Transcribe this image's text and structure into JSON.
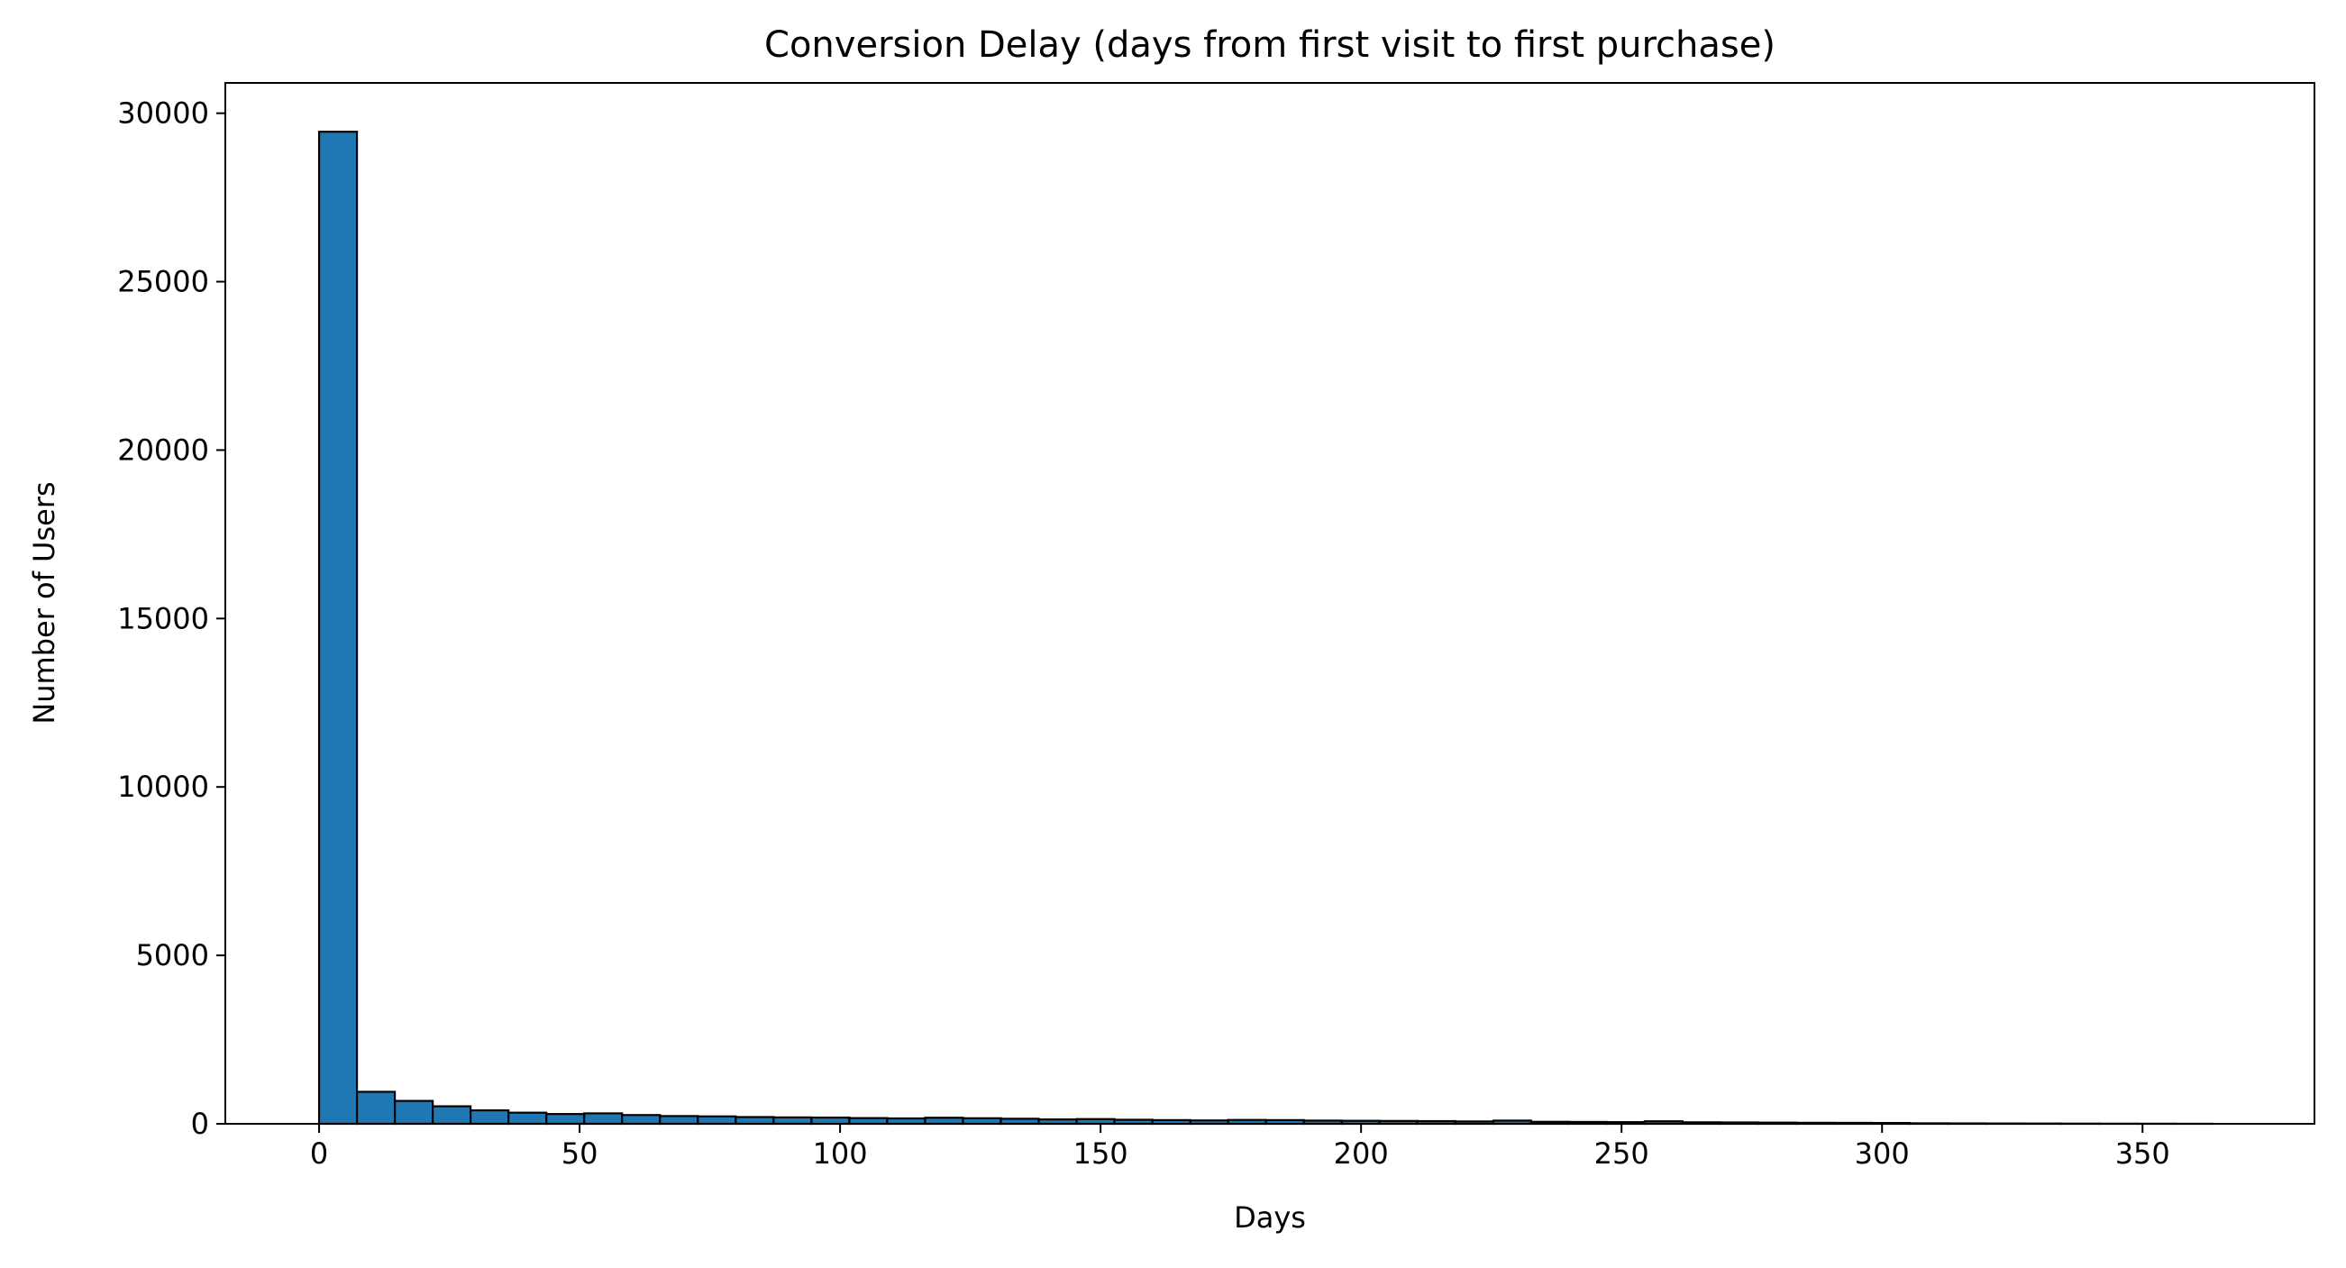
{
  "chart_data": {
    "type": "bar",
    "title": "Conversion Delay (days from first visit to first purchase)",
    "xlabel": "Days",
    "ylabel": "Number of Users",
    "xlim": [
      -18,
      383
    ],
    "ylim": [
      0,
      30900
    ],
    "x_ticks": [
      0,
      50,
      100,
      150,
      200,
      250,
      300,
      350
    ],
    "y_ticks": [
      0,
      5000,
      10000,
      15000,
      20000,
      25000,
      30000
    ],
    "x_tick_labels": [
      "0",
      "50",
      "100",
      "150",
      "200",
      "250",
      "300",
      "350"
    ],
    "y_tick_labels": [
      "0",
      "5000",
      "10000",
      "15000",
      "20000",
      "25000",
      "30000"
    ],
    "bin_start": 0,
    "bin_width": 7.27,
    "values": [
      29450,
      950,
      680,
      520,
      400,
      330,
      290,
      310,
      260,
      230,
      220,
      200,
      190,
      185,
      170,
      160,
      180,
      165,
      150,
      130,
      140,
      120,
      110,
      100,
      115,
      110,
      95,
      90,
      85,
      80,
      70,
      95,
      60,
      55,
      50,
      75,
      45,
      40,
      35,
      30,
      28,
      25,
      15,
      12,
      10,
      8,
      6,
      4,
      3,
      2
    ],
    "grid": false,
    "legend": "none",
    "colors": {
      "bar_fill": "#1f77b4",
      "bar_edge": "#000000",
      "axes": "#000000",
      "background": "#ffffff"
    }
  }
}
